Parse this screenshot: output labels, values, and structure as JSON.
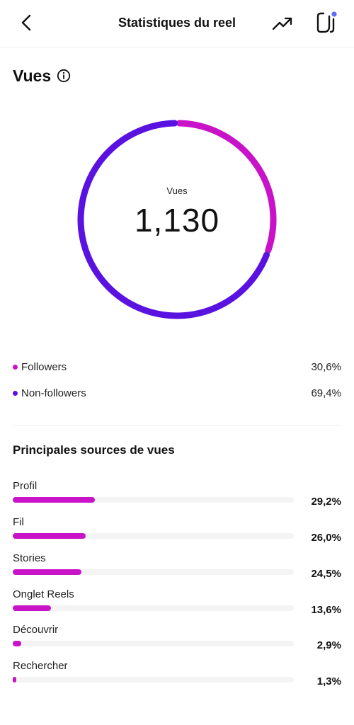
{
  "header": {
    "title": "Statistiques du reel",
    "back_icon": "chevron-left-icon",
    "trend_icon": "trending-up-icon",
    "clip_icon": "clip-icon"
  },
  "views": {
    "section_title": "Vues",
    "info_icon": "info-icon",
    "center_label": "Vues",
    "total": "1,130"
  },
  "colors": {
    "followers": "#c913c9",
    "non_followers": "#5a12e0",
    "source_bar": "#c913c9",
    "track": "#f4f4f4",
    "notification_dot": "#5b6cf5"
  },
  "chart_data": {
    "type": "pie",
    "categories": [
      "Followers",
      "Non-followers"
    ],
    "values": [
      30.6,
      69.4
    ],
    "title": "",
    "center_text": "1,130",
    "center_label": "Vues"
  },
  "legend": [
    {
      "name": "Followers",
      "value": "30,6%",
      "color": "#c913c9"
    },
    {
      "name": "Non-followers",
      "value": "69,4%",
      "color": "#5a12e0"
    }
  ],
  "sources": {
    "title": "Principales sources de vues",
    "items": [
      {
        "label": "Profil",
        "value": "29,2%",
        "percent": 29.2
      },
      {
        "label": "Fil",
        "value": "26,0%",
        "percent": 26.0
      },
      {
        "label": "Stories",
        "value": "24,5%",
        "percent": 24.5
      },
      {
        "label": "Onglet Reels",
        "value": "13,6%",
        "percent": 13.6
      },
      {
        "label": "Découvrir",
        "value": "2,9%",
        "percent": 2.9
      },
      {
        "label": "Rechercher",
        "value": "1,3%",
        "percent": 1.3
      }
    ]
  }
}
